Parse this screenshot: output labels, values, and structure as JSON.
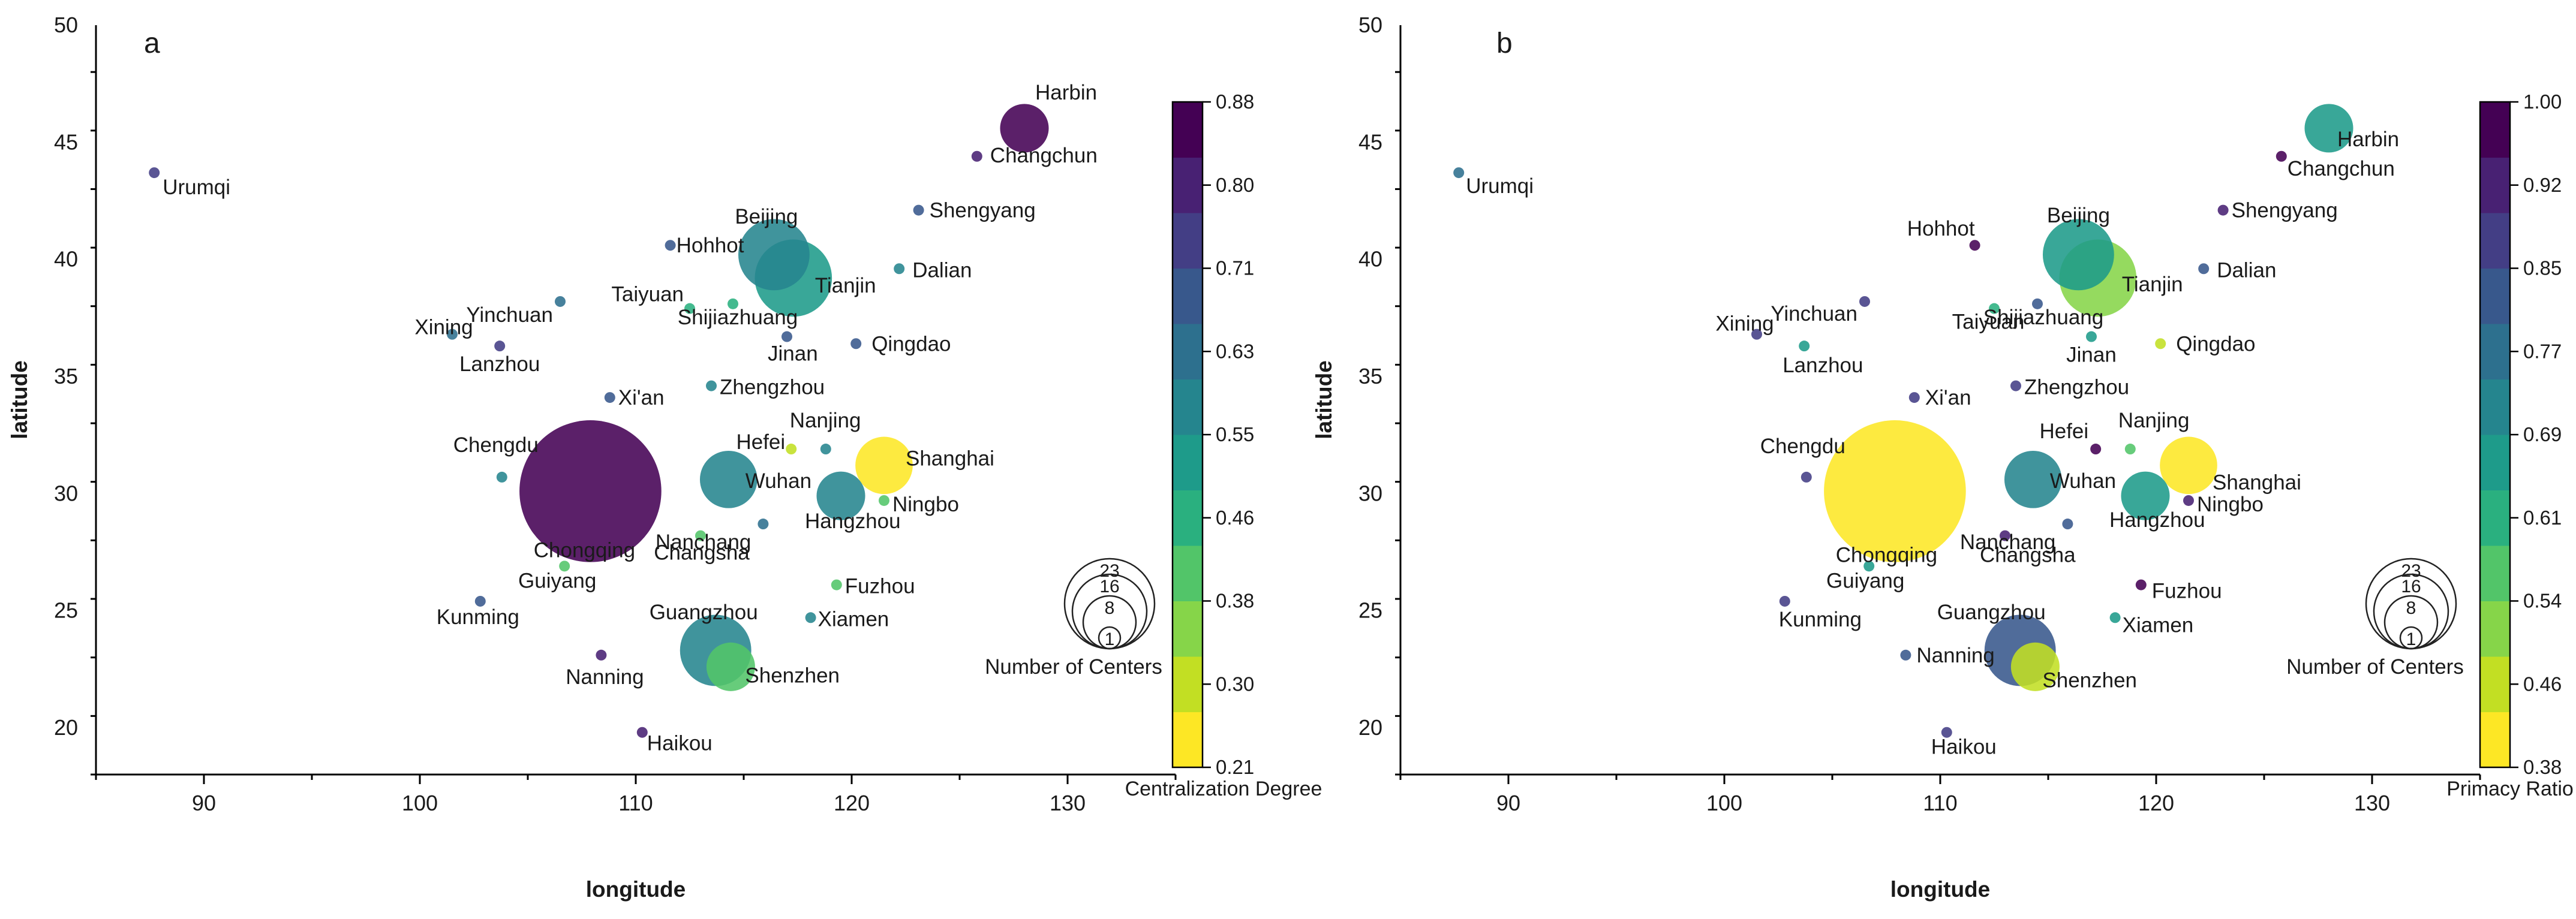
{
  "chart_data": [
    {
      "type": "scatter",
      "panel_label": "a",
      "xlabel": "longitude",
      "ylabel": "latitude",
      "xlim": [
        85,
        135
      ],
      "ylim": [
        18,
        50
      ],
      "xticks": [
        90,
        100,
        110,
        120,
        130
      ],
      "yticks": [
        20,
        25,
        30,
        35,
        40,
        45,
        50
      ],
      "colorbar": {
        "title": "Centralization Degree",
        "min": 0.21,
        "max": 0.88,
        "ticks": [
          "0.21",
          "0.30",
          "0.38",
          "0.46",
          "0.55",
          "0.63",
          "0.71",
          "0.80",
          "0.88"
        ],
        "colors": [
          "#fde725",
          "#c2df23",
          "#86d549",
          "#52c569",
          "#2ab07f",
          "#1e9b8a",
          "#25858e",
          "#2d708e",
          "#38588c",
          "#433e85",
          "#482173",
          "#440154"
        ]
      },
      "size_legend": {
        "title": "Number of Centers",
        "values": [
          23,
          16,
          8,
          1
        ]
      },
      "points": [
        {
          "city": "Harbin",
          "lon": 128.0,
          "lat": 45.6,
          "centers": 2,
          "value": 0.83
        },
        {
          "city": "Changchun",
          "lon": 125.8,
          "lat": 44.4,
          "centers": 1,
          "value": 0.8
        },
        {
          "city": "Urumqi",
          "lon": 87.7,
          "lat": 43.7,
          "centers": 1,
          "value": 0.76
        },
        {
          "city": "Shengyang",
          "lon": 123.1,
          "lat": 42.1,
          "centers": 1,
          "value": 0.66
        },
        {
          "city": "Hohhot",
          "lon": 111.6,
          "lat": 40.6,
          "centers": 1,
          "value": 0.7
        },
        {
          "city": "Beijing",
          "lon": 116.4,
          "lat": 40.2,
          "centers": 5,
          "value": 0.57
        },
        {
          "city": "Tianjin",
          "lon": 117.3,
          "lat": 39.2,
          "centers": 6,
          "value": 0.52
        },
        {
          "city": "Dalian",
          "lon": 122.2,
          "lat": 39.6,
          "centers": 1,
          "value": 0.57
        },
        {
          "city": "Taiyuan",
          "lon": 112.5,
          "lat": 37.9,
          "centers": 1,
          "value": 0.45
        },
        {
          "city": "Yinchuan",
          "lon": 106.5,
          "lat": 38.2,
          "centers": 1,
          "value": 0.62
        },
        {
          "city": "Shijiazhuang",
          "lon": 114.5,
          "lat": 38.1,
          "centers": 1,
          "value": 0.47
        },
        {
          "city": "Xining",
          "lon": 101.5,
          "lat": 36.8,
          "centers": 1,
          "value": 0.62
        },
        {
          "city": "Jinan",
          "lon": 117.0,
          "lat": 36.7,
          "centers": 1,
          "value": 0.67
        },
        {
          "city": "Qingdao",
          "lon": 120.2,
          "lat": 36.4,
          "centers": 1,
          "value": 0.67
        },
        {
          "city": "Lanzhou",
          "lon": 103.7,
          "lat": 36.3,
          "centers": 1,
          "value": 0.76
        },
        {
          "city": "Zhengzhou",
          "lon": 113.5,
          "lat": 34.6,
          "centers": 1,
          "value": 0.55
        },
        {
          "city": "Xi'an",
          "lon": 108.8,
          "lat": 34.1,
          "centers": 1,
          "value": 0.66
        },
        {
          "city": "Nanjing",
          "lon": 118.8,
          "lat": 31.9,
          "centers": 1,
          "value": 0.55
        },
        {
          "city": "Hefei",
          "lon": 117.2,
          "lat": 31.9,
          "centers": 1,
          "value": 0.28
        },
        {
          "city": "Shanghai",
          "lon": 121.5,
          "lat": 31.2,
          "centers": 3,
          "value": 0.26
        },
        {
          "city": "Chengdu",
          "lon": 103.8,
          "lat": 30.7,
          "centers": 1,
          "value": 0.56
        },
        {
          "city": "Wuhan",
          "lon": 114.3,
          "lat": 30.6,
          "centers": 3,
          "value": 0.57
        },
        {
          "city": "Chongqing",
          "lon": 107.9,
          "lat": 30.1,
          "centers": 23,
          "value": 0.86
        },
        {
          "city": "Hangzhou",
          "lon": 119.5,
          "lat": 29.9,
          "centers": 2,
          "value": 0.57
        },
        {
          "city": "Ningbo",
          "lon": 121.5,
          "lat": 29.7,
          "centers": 1,
          "value": 0.42
        },
        {
          "city": "Nanchang",
          "lon": 115.9,
          "lat": 28.7,
          "centers": 1,
          "value": 0.65
        },
        {
          "city": "Changsha",
          "lon": 113.0,
          "lat": 28.2,
          "centers": 1,
          "value": 0.42
        },
        {
          "city": "Guiyang",
          "lon": 106.7,
          "lat": 26.9,
          "centers": 1,
          "value": 0.42
        },
        {
          "city": "Fuzhou",
          "lon": 119.3,
          "lat": 26.1,
          "centers": 1,
          "value": 0.4
        },
        {
          "city": "Kunming",
          "lon": 102.8,
          "lat": 25.4,
          "centers": 1,
          "value": 0.66
        },
        {
          "city": "Xiamen",
          "lon": 118.1,
          "lat": 24.7,
          "centers": 1,
          "value": 0.55
        },
        {
          "city": "Guangzhou",
          "lon": 113.7,
          "lat": 23.3,
          "centers": 5,
          "value": 0.56
        },
        {
          "city": "Shenzhen",
          "lon": 114.4,
          "lat": 22.6,
          "centers": 2,
          "value": 0.43
        },
        {
          "city": "Nanning",
          "lon": 108.4,
          "lat": 23.1,
          "centers": 1,
          "value": 0.8
        },
        {
          "city": "Haikou",
          "lon": 110.3,
          "lat": 19.8,
          "centers": 1,
          "value": 0.8
        }
      ]
    },
    {
      "type": "scatter",
      "panel_label": "b",
      "xlabel": "longitude",
      "ylabel": "latitude",
      "xlim": [
        85,
        135
      ],
      "ylim": [
        18,
        50
      ],
      "xticks": [
        90,
        100,
        110,
        120,
        130
      ],
      "yticks": [
        20,
        25,
        30,
        35,
        40,
        45,
        50
      ],
      "colorbar": {
        "title": "Primacy Ratio",
        "min": 0.38,
        "max": 1.0,
        "ticks": [
          "0.38",
          "0.46",
          "0.54",
          "0.61",
          "0.69",
          "0.77",
          "0.85",
          "0.92",
          "1.00"
        ],
        "colors": [
          "#fde725",
          "#c2df23",
          "#86d549",
          "#52c569",
          "#2ab07f",
          "#1e9b8a",
          "#25858e",
          "#2d708e",
          "#38588c",
          "#433e85",
          "#482173",
          "#440154"
        ]
      },
      "size_legend": {
        "title": "Number of Centers",
        "values": [
          23,
          16,
          8,
          1
        ]
      },
      "points": [
        {
          "city": "Harbin",
          "lon": 128.0,
          "lat": 45.6,
          "centers": 2,
          "value": 0.68
        },
        {
          "city": "Changchun",
          "lon": 125.8,
          "lat": 44.4,
          "centers": 1,
          "value": 0.95
        },
        {
          "city": "Urumqi",
          "lon": 87.7,
          "lat": 43.7,
          "centers": 1,
          "value": 0.78
        },
        {
          "city": "Shengyang",
          "lon": 123.1,
          "lat": 42.1,
          "centers": 1,
          "value": 0.93
        },
        {
          "city": "Hohhot",
          "lon": 111.6,
          "lat": 40.6,
          "centers": 1,
          "value": 0.95
        },
        {
          "city": "Beijing",
          "lon": 116.4,
          "lat": 40.2,
          "centers": 5,
          "value": 0.67
        },
        {
          "city": "Tianjin",
          "lon": 117.3,
          "lat": 39.2,
          "centers": 6,
          "value": 0.5
        },
        {
          "city": "Dalian",
          "lon": 122.2,
          "lat": 39.6,
          "centers": 1,
          "value": 0.8
        },
        {
          "city": "Taiyuan",
          "lon": 112.5,
          "lat": 37.9,
          "centers": 1,
          "value": 0.62
        },
        {
          "city": "Yinchuan",
          "lon": 106.5,
          "lat": 38.2,
          "centers": 1,
          "value": 0.86
        },
        {
          "city": "Shijiazhuang",
          "lon": 114.5,
          "lat": 38.1,
          "centers": 1,
          "value": 0.8
        },
        {
          "city": "Xining",
          "lon": 101.5,
          "lat": 36.8,
          "centers": 1,
          "value": 0.85
        },
        {
          "city": "Jinan",
          "lon": 117.0,
          "lat": 36.7,
          "centers": 1,
          "value": 0.67
        },
        {
          "city": "Qingdao",
          "lon": 120.2,
          "lat": 36.4,
          "centers": 1,
          "value": 0.48
        },
        {
          "city": "Lanzhou",
          "lon": 103.7,
          "lat": 36.3,
          "centers": 1,
          "value": 0.67
        },
        {
          "city": "Zhengzhou",
          "lon": 113.5,
          "lat": 34.6,
          "centers": 1,
          "value": 0.85
        },
        {
          "city": "Xi'an",
          "lon": 108.8,
          "lat": 34.1,
          "centers": 1,
          "value": 0.88
        },
        {
          "city": "Nanjing",
          "lon": 118.8,
          "lat": 31.9,
          "centers": 1,
          "value": 0.57
        },
        {
          "city": "Hefei",
          "lon": 117.2,
          "lat": 31.9,
          "centers": 1,
          "value": 0.95
        },
        {
          "city": "Shanghai",
          "lon": 121.5,
          "lat": 31.2,
          "centers": 3,
          "value": 0.42
        },
        {
          "city": "Chengdu",
          "lon": 103.8,
          "lat": 30.7,
          "centers": 1,
          "value": 0.88
        },
        {
          "city": "Wuhan",
          "lon": 114.3,
          "lat": 30.6,
          "centers": 3,
          "value": 0.7
        },
        {
          "city": "Chongqing",
          "lon": 107.9,
          "lat": 30.1,
          "centers": 23,
          "value": 0.4
        },
        {
          "city": "Hangzhou",
          "lon": 119.5,
          "lat": 29.9,
          "centers": 2,
          "value": 0.68
        },
        {
          "city": "Ningbo",
          "lon": 121.5,
          "lat": 29.7,
          "centers": 1,
          "value": 0.9
        },
        {
          "city": "Nanchang",
          "lon": 115.9,
          "lat": 28.7,
          "centers": 1,
          "value": 0.82
        },
        {
          "city": "Changsha",
          "lon": 113.0,
          "lat": 28.2,
          "centers": 1,
          "value": 0.92
        },
        {
          "city": "Guiyang",
          "lon": 106.7,
          "lat": 26.9,
          "centers": 1,
          "value": 0.68
        },
        {
          "city": "Fuzhou",
          "lon": 119.3,
          "lat": 26.1,
          "centers": 1,
          "value": 0.95
        },
        {
          "city": "Kunming",
          "lon": 102.8,
          "lat": 25.4,
          "centers": 1,
          "value": 0.88
        },
        {
          "city": "Xiamen",
          "lon": 118.1,
          "lat": 24.7,
          "centers": 1,
          "value": 0.66
        },
        {
          "city": "Guangzhou",
          "lon": 113.7,
          "lat": 23.3,
          "centers": 5,
          "value": 0.83
        },
        {
          "city": "Shenzhen",
          "lon": 114.4,
          "lat": 22.6,
          "centers": 2,
          "value": 0.48
        },
        {
          "city": "Nanning",
          "lon": 108.4,
          "lat": 23.1,
          "centers": 1,
          "value": 0.8
        },
        {
          "city": "Haikou",
          "lon": 110.3,
          "lat": 19.8,
          "centers": 1,
          "value": 0.85
        }
      ]
    }
  ]
}
